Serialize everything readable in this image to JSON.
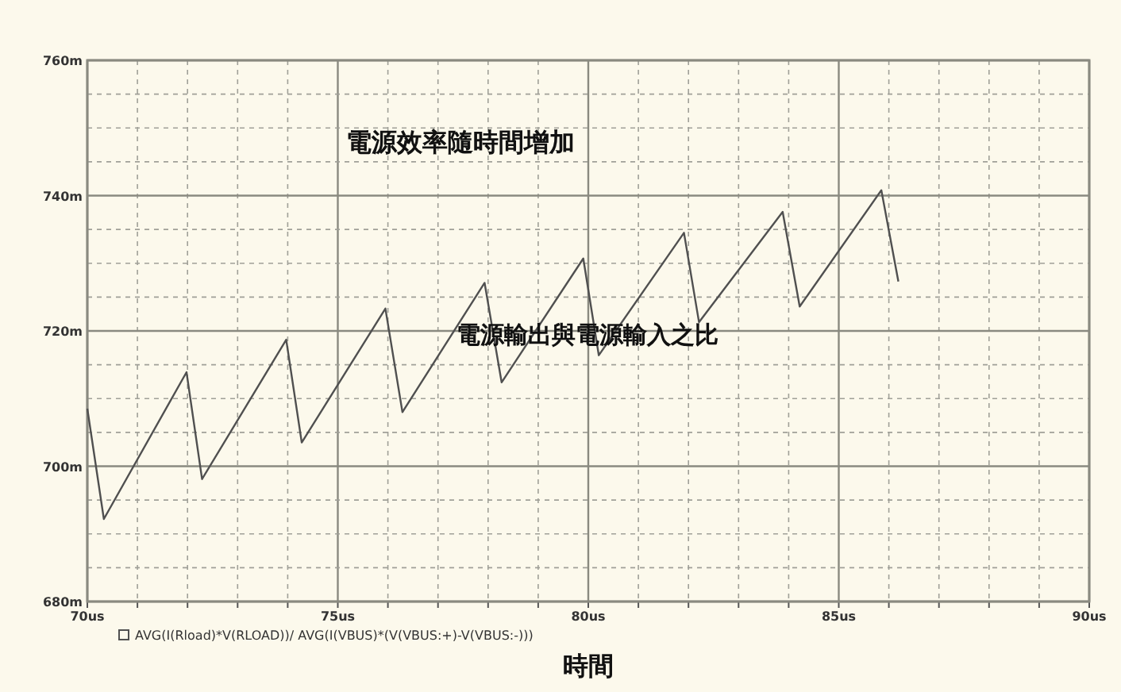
{
  "chart_data": {
    "type": "line",
    "title": "電源效率隨時間增加",
    "xlabel": "時間",
    "annotations": [
      "電源輸出與電源輸入之比"
    ],
    "series": [
      {
        "name": "AVG(I(Rload)*V(RLOAD))/ AVG(I(VBUS)*(V(VBUS:+)-V(VBUS:-)))",
        "color": "#505050",
        "x": [
          70.0,
          70.33,
          71.98,
          72.29,
          73.97,
          74.28,
          75.95,
          76.29,
          77.93,
          78.27,
          79.9,
          80.21,
          81.91,
          82.21,
          83.88,
          84.22,
          85.85,
          86.19
        ],
        "values": [
          708.5,
          692.2,
          713.9,
          698.1,
          718.7,
          703.5,
          723.3,
          708.0,
          727.1,
          712.4,
          730.7,
          716.4,
          734.5,
          721.3,
          737.6,
          723.6,
          740.8,
          727.3
        ]
      }
    ],
    "xlim": [
      70,
      90
    ],
    "xticks": [
      {
        "value": 70,
        "label": "70us"
      },
      {
        "value": 71,
        "label": null
      },
      {
        "value": 72,
        "label": null
      },
      {
        "value": 73,
        "label": null
      },
      {
        "value": 74,
        "label": null
      },
      {
        "value": 75,
        "label": "75us"
      },
      {
        "value": 76,
        "label": null
      },
      {
        "value": 77,
        "label": null
      },
      {
        "value": 78,
        "label": null
      },
      {
        "value": 79,
        "label": null
      },
      {
        "value": 80,
        "label": "80us"
      },
      {
        "value": 81,
        "label": null
      },
      {
        "value": 82,
        "label": null
      },
      {
        "value": 83,
        "label": null
      },
      {
        "value": 84,
        "label": null
      },
      {
        "value": 85,
        "label": "85us"
      },
      {
        "value": 86,
        "label": null
      },
      {
        "value": 87,
        "label": null
      },
      {
        "value": 88,
        "label": null
      },
      {
        "value": 89,
        "label": null
      },
      {
        "value": 90,
        "label": "90us"
      }
    ],
    "ylim": [
      680,
      760
    ],
    "yticks": [
      {
        "value": 680,
        "label": "680m"
      },
      {
        "value": 685,
        "label": null
      },
      {
        "value": 690,
        "label": null
      },
      {
        "value": 695,
        "label": null
      },
      {
        "value": 700,
        "label": "700m"
      },
      {
        "value": 705,
        "label": null
      },
      {
        "value": 710,
        "label": null
      },
      {
        "value": 715,
        "label": null
      },
      {
        "value": 720,
        "label": "720m"
      },
      {
        "value": 725,
        "label": null
      },
      {
        "value": 730,
        "label": null
      },
      {
        "value": 735,
        "label": null
      },
      {
        "value": 740,
        "label": "740m"
      },
      {
        "value": 745,
        "label": null
      },
      {
        "value": 750,
        "label": null
      },
      {
        "value": 755,
        "label": null
      },
      {
        "value": 760,
        "label": "760m"
      }
    ],
    "grid": true,
    "legend": "bottom left",
    "marker": "none",
    "line_style": "solid"
  }
}
